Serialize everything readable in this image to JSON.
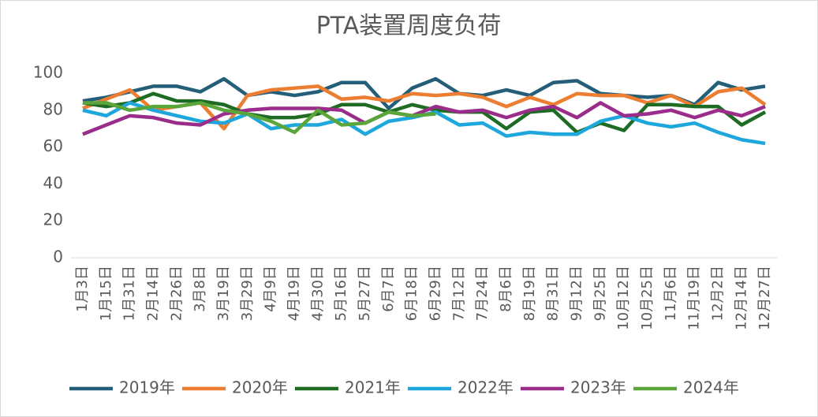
{
  "chart_data": {
    "type": "line",
    "title": "PTA装置周度负荷",
    "categories": [
      "1月3日",
      "1月15日",
      "1月31日",
      "2月14日",
      "2月26日",
      "3月8日",
      "3月19日",
      "3月29日",
      "4月9日",
      "4月19日",
      "4月30日",
      "5月16日",
      "5月27日",
      "6月7日",
      "6月18日",
      "6月29日",
      "7月12日",
      "7月24日",
      "8月6日",
      "8月19日",
      "8月31日",
      "9月12日",
      "9月25日",
      "10月12日",
      "10月25日",
      "11月6日",
      "11月19日",
      "12月2日",
      "12月14日",
      "12月27日"
    ],
    "series": [
      {
        "name": "2019年",
        "color": "#255e79",
        "values": [
          85,
          87,
          90,
          93,
          93,
          90,
          97,
          88,
          90,
          88,
          90,
          95,
          95,
          81,
          92,
          97,
          89,
          88,
          91,
          88,
          95,
          96,
          89,
          88,
          87,
          88,
          83,
          95,
          91,
          93
        ]
      },
      {
        "name": "2020年",
        "color": "#ed7d31",
        "values": [
          81,
          86,
          91,
          80,
          82,
          84,
          70,
          88,
          91,
          92,
          93,
          86,
          87,
          85,
          89,
          88,
          89,
          87,
          82,
          87,
          83,
          89,
          88,
          88,
          84,
          88,
          82,
          90,
          92,
          83
        ]
      },
      {
        "name": "2021年",
        "color": "#1e6b24",
        "values": [
          84,
          82,
          84,
          89,
          85,
          85,
          83,
          78,
          76,
          76,
          78,
          83,
          83,
          79,
          83,
          80,
          79,
          79,
          70,
          79,
          80,
          68,
          73,
          69,
          83,
          83,
          82,
          82,
          72,
          79
        ]
      },
      {
        "name": "2022年",
        "color": "#1ea7dc",
        "values": [
          80,
          77,
          84,
          80,
          77,
          74,
          73,
          78,
          70,
          72,
          72,
          75,
          67,
          74,
          76,
          79,
          72,
          73,
          66,
          68,
          67,
          67,
          74,
          77,
          73,
          71,
          73,
          68,
          64,
          62
        ]
      },
      {
        "name": "2023年",
        "color": "#9b2d8a",
        "values": [
          67,
          72,
          77,
          76,
          73,
          72,
          78,
          80,
          81,
          81,
          81,
          80,
          73,
          79,
          77,
          82,
          79,
          80,
          76,
          80,
          82,
          76,
          84,
          77,
          78,
          80,
          76,
          80,
          77,
          82
        ]
      },
      {
        "name": "2024年",
        "color": "#5aa63a",
        "values": [
          84,
          84,
          80,
          82,
          82,
          84,
          80,
          78,
          74,
          68,
          80,
          72,
          73,
          79,
          77,
          78,
          null,
          null,
          null,
          null,
          null,
          null,
          null,
          null,
          null,
          null,
          null,
          null,
          null,
          null
        ]
      }
    ],
    "ylim": [
      0,
      100
    ],
    "yticks": [
      0,
      20,
      40,
      60,
      80,
      100
    ],
    "grid": false,
    "legend": "bottom"
  }
}
